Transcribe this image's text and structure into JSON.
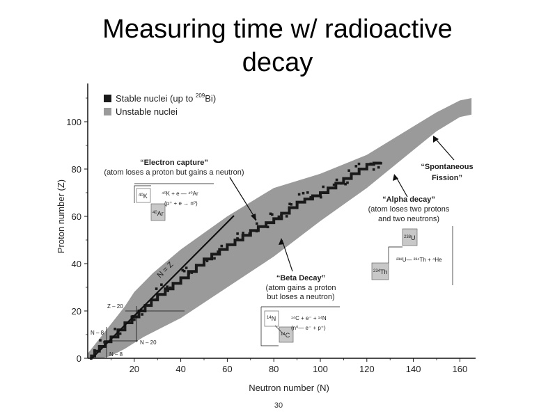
{
  "slide": {
    "title_line1": "Measuring time w/ radioactive",
    "title_line2": "decay",
    "page_number": "30"
  },
  "chart_data": {
    "type": "scatter",
    "xlabel": "Neutron number (N)",
    "ylabel": "Proton number (Z)",
    "xlim": [
      0,
      165
    ],
    "ylim": [
      0,
      115
    ],
    "xticks": [
      20,
      40,
      60,
      80,
      100,
      120,
      140,
      160
    ],
    "yticks": [
      0,
      20,
      40,
      60,
      80,
      100
    ],
    "legend": {
      "position": "top-left",
      "items": [
        {
          "label_prefix": "Stable nuclei (up to ",
          "sup": "209",
          "label_suffix": "Bi)",
          "color": "#1a1a1a"
        },
        {
          "label_prefix": "Unstable nuclei",
          "sup": "",
          "label_suffix": "",
          "color": "#9a9a9a"
        }
      ]
    },
    "unstable_band": {
      "upper": [
        [
          0,
          2
        ],
        [
          4,
          7
        ],
        [
          8,
          12
        ],
        [
          12,
          17
        ],
        [
          16,
          22
        ],
        [
          20,
          28
        ],
        [
          28,
          36
        ],
        [
          40,
          46
        ],
        [
          60,
          60
        ],
        [
          80,
          72
        ],
        [
          100,
          78
        ],
        [
          120,
          86
        ],
        [
          140,
          98
        ],
        [
          150,
          104
        ],
        [
          160,
          109
        ],
        [
          165,
          110
        ]
      ],
      "lower": [
        [
          165,
          103
        ],
        [
          160,
          102
        ],
        [
          150,
          96
        ],
        [
          140,
          88
        ],
        [
          130,
          80
        ],
        [
          120,
          72
        ],
        [
          100,
          58
        ],
        [
          80,
          43
        ],
        [
          60,
          30
        ],
        [
          40,
          17
        ],
        [
          24,
          9
        ],
        [
          16,
          4
        ],
        [
          10,
          1
        ],
        [
          6,
          0
        ],
        [
          0,
          0
        ]
      ]
    },
    "stable_valley": [
      [
        1,
        1
      ],
      [
        5,
        5
      ],
      [
        10,
        9
      ],
      [
        16,
        15
      ],
      [
        22,
        20
      ],
      [
        30,
        27
      ],
      [
        40,
        34
      ],
      [
        50,
        42
      ],
      [
        60,
        48
      ],
      [
        70,
        54
      ],
      [
        80,
        59
      ],
      [
        90,
        66
      ],
      [
        100,
        70
      ],
      [
        110,
        76
      ],
      [
        120,
        82
      ],
      [
        126,
        83
      ]
    ],
    "reference_lines": {
      "n_equals_z_label": "N = Z",
      "z20_label": "Z – 20",
      "n20_label": "N – 20",
      "n8_label": "N – 8",
      "n8b_label": "N – 8"
    },
    "annotations": {
      "electron_capture": {
        "title": "“Electron capture”",
        "subtitle": "(atom loses a proton but gains a neutron)",
        "k_mass": "40",
        "k_sym": "K",
        "ar_mass": "40",
        "ar_sym": "Ar",
        "eq1": "⁴⁰K  +  e  —  ⁴⁰Ar",
        "eq2": "(p⁺ + e   →  n⁰)"
      },
      "beta_decay": {
        "title": "“Beta Decay”",
        "subtitle1": "(atom gains a proton",
        "subtitle2": "but loses a neutron)",
        "n_mass": "14",
        "n_sym": "N",
        "c_mass": "14",
        "c_sym": "C",
        "eq1": "¹⁴C  +  e⁻  +  ¹⁴N",
        "eq2": "(n⁰—  e⁻ + p⁺)"
      },
      "alpha_decay": {
        "title": "“Alpha decay”",
        "subtitle1": "(atom loses two protons",
        "subtitle2": "and two neutrons)",
        "u_mass": "238",
        "u_sym": "U",
        "th_mass": "234",
        "th_sym": "Th",
        "eq1": "²³⁸U— ²³⁴Th  +  ⁴He"
      },
      "fission": {
        "title1": "“Spontaneous",
        "title2": "Fission”"
      }
    }
  }
}
